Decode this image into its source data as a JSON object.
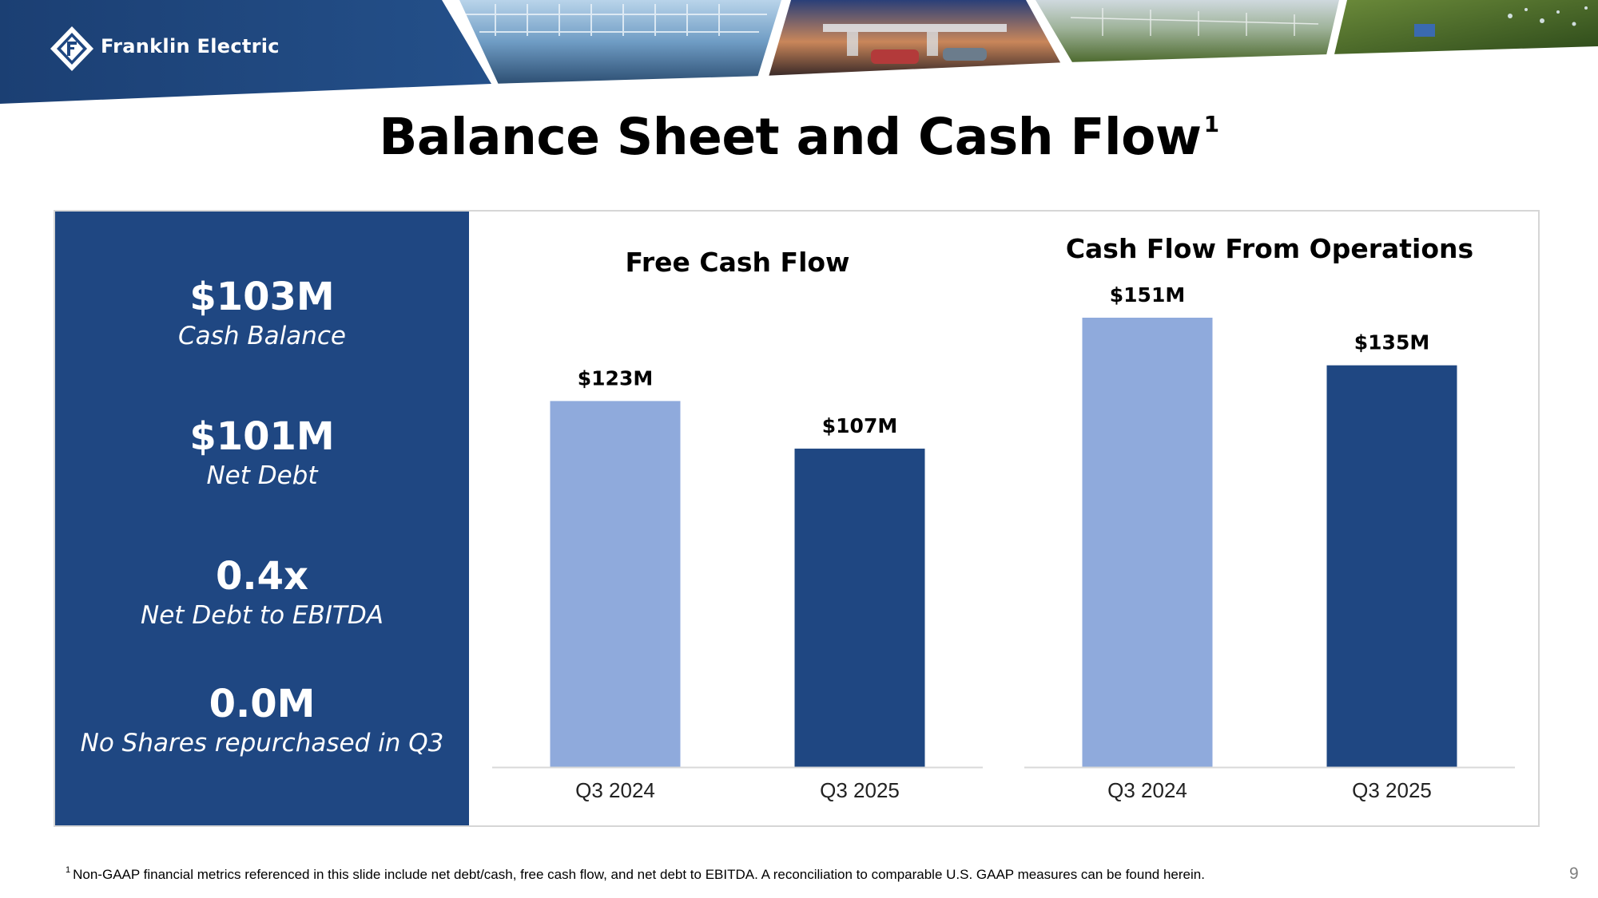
{
  "header": {
    "company": "Franklin Electric",
    "slide_title": "Balance Sheet and Cash Flow",
    "title_superscript": "1"
  },
  "kpis": [
    {
      "value": "$103M",
      "label": "Cash Balance"
    },
    {
      "value": "$101M",
      "label": "Net Debt"
    },
    {
      "value": "0.4x",
      "label": "Net Debt to EBITDA"
    },
    {
      "value": "0.0M",
      "label": "No Shares repurchased in Q3"
    }
  ],
  "chart_data": [
    {
      "type": "bar",
      "title": "Free Cash Flow",
      "categories": [
        "Q3 2024",
        "Q3 2025"
      ],
      "values": [
        123,
        107
      ],
      "data_labels": [
        "$123M",
        "$107M"
      ],
      "unit": "$M",
      "colors": [
        "#8faadc",
        "#1f4782"
      ],
      "ylim": [
        0,
        151
      ],
      "grid": false,
      "legend": "none"
    },
    {
      "type": "bar",
      "title": "Cash Flow From Operations",
      "categories": [
        "Q3 2024",
        "Q3 2025"
      ],
      "values": [
        151,
        135
      ],
      "data_labels": [
        "$151M",
        "$135M"
      ],
      "unit": "$M",
      "colors": [
        "#8faadc",
        "#1f4782"
      ],
      "ylim": [
        0,
        151
      ],
      "grid": false,
      "legend": "none"
    }
  ],
  "footnote": {
    "marker": "1",
    "text": "Non-GAAP financial metrics referenced in this slide include net debt/cash, free cash flow, and net debt to EBITDA. A reconciliation to comparable U.S. GAAP measures can be found herein."
  },
  "page_number": "9",
  "colors": {
    "brand_navy": "#1f4782",
    "bar_light": "#8faadc",
    "bar_dark": "#1f4782"
  }
}
